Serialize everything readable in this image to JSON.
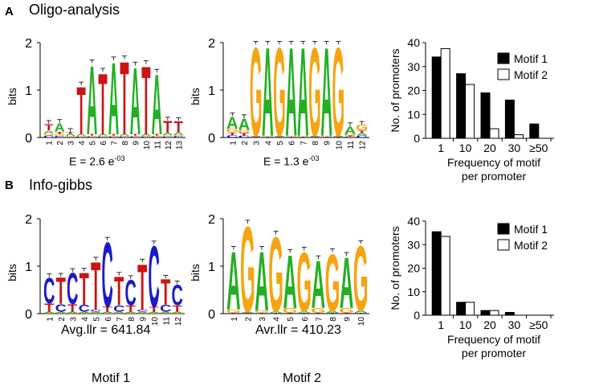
{
  "panels": {
    "A": {
      "letter": "A",
      "title": "Oligo-analysis"
    },
    "B": {
      "letter": "B",
      "title": "Info-gibbs"
    }
  },
  "logos": {
    "oligo_motif1": {
      "ylabel": "bits",
      "yticks": [
        "0",
        "1",
        "2"
      ],
      "ymax": 2,
      "stat_prefix": "E = 2.6 e",
      "stat_exp": "-03",
      "positions": [
        "1",
        "2",
        "3",
        "4",
        "5",
        "6",
        "7",
        "8",
        "9",
        "10",
        "11",
        "12",
        "13"
      ],
      "stacks": [
        [
          [
            "C",
            0.04
          ],
          [
            "G",
            0.05
          ],
          [
            "A",
            0.06
          ],
          [
            "T",
            0.14
          ]
        ],
        [
          [
            "C",
            0.03
          ],
          [
            "G",
            0.04
          ],
          [
            "T",
            0.06
          ],
          [
            "A",
            0.18
          ]
        ],
        [
          [
            "C",
            0.01
          ],
          [
            "G",
            0.02
          ],
          [
            "A",
            0.05
          ],
          [
            "T",
            0.04
          ]
        ],
        [
          [
            "C",
            0.02
          ],
          [
            "G",
            0.02
          ],
          [
            "A",
            0.03
          ],
          [
            "T",
            1.03
          ]
        ],
        [
          [
            "C",
            0.02
          ],
          [
            "G",
            0.02
          ],
          [
            "T",
            0.03
          ],
          [
            "A",
            1.5
          ]
        ],
        [
          [
            "C",
            0.02
          ],
          [
            "G",
            0.02
          ],
          [
            "A",
            0.03
          ],
          [
            "T",
            1.32
          ]
        ],
        [
          [
            "C",
            0.02
          ],
          [
            "G",
            0.02
          ],
          [
            "T",
            0.03
          ],
          [
            "A",
            1.56
          ]
        ],
        [
          [
            "C",
            0.02
          ],
          [
            "G",
            0.02
          ],
          [
            "A",
            0.03
          ],
          [
            "T",
            1.58
          ]
        ],
        [
          [
            "C",
            0.02
          ],
          [
            "G",
            0.02
          ],
          [
            "T",
            0.03
          ],
          [
            "A",
            1.45
          ]
        ],
        [
          [
            "C",
            0.02
          ],
          [
            "G",
            0.02
          ],
          [
            "A",
            0.03
          ],
          [
            "T",
            1.48
          ]
        ],
        [
          [
            "C",
            0.02
          ],
          [
            "G",
            0.02
          ],
          [
            "T",
            0.03
          ],
          [
            "A",
            1.3
          ]
        ],
        [
          [
            "C",
            0.02
          ],
          [
            "G",
            0.03
          ],
          [
            "A",
            0.05
          ],
          [
            "T",
            0.26
          ]
        ],
        [
          [
            "C",
            0.03
          ],
          [
            "G",
            0.03
          ],
          [
            "A",
            0.05
          ],
          [
            "T",
            0.24
          ]
        ]
      ]
    },
    "oligo_motif2": {
      "ylabel": "bits",
      "yticks": [
        "0",
        "1",
        "2"
      ],
      "ymax": 2,
      "stat_prefix": "E = 1.3 e",
      "stat_exp": "-03",
      "positions": [
        "1",
        "2",
        "3",
        "4",
        "5",
        "6",
        "7",
        "8",
        "9",
        "10",
        "11",
        "12"
      ],
      "stacks": [
        [
          [
            "C",
            0.05
          ],
          [
            "T",
            0.06
          ],
          [
            "G",
            0.08
          ],
          [
            "A",
            0.26
          ]
        ],
        [
          [
            "C",
            0.04
          ],
          [
            "T",
            0.05
          ],
          [
            "G",
            0.07
          ],
          [
            "A",
            0.25
          ]
        ],
        [
          [
            "C",
            0.01
          ],
          [
            "T",
            0.01
          ],
          [
            "A",
            0.02
          ],
          [
            "G",
            1.92
          ]
        ],
        [
          [
            "C",
            0.01
          ],
          [
            "T",
            0.01
          ],
          [
            "G",
            0.02
          ],
          [
            "A",
            1.92
          ]
        ],
        [
          [
            "C",
            0.01
          ],
          [
            "T",
            0.01
          ],
          [
            "A",
            0.02
          ],
          [
            "G",
            1.92
          ]
        ],
        [
          [
            "C",
            0.01
          ],
          [
            "T",
            0.01
          ],
          [
            "G",
            0.02
          ],
          [
            "A",
            1.92
          ]
        ],
        [
          [
            "C",
            0.01
          ],
          [
            "T",
            0.01
          ],
          [
            "G",
            0.02
          ],
          [
            "A",
            1.92
          ]
        ],
        [
          [
            "C",
            0.01
          ],
          [
            "T",
            0.01
          ],
          [
            "A",
            0.02
          ],
          [
            "G",
            1.92
          ]
        ],
        [
          [
            "C",
            0.01
          ],
          [
            "T",
            0.01
          ],
          [
            "G",
            0.02
          ],
          [
            "A",
            1.92
          ]
        ],
        [
          [
            "C",
            0.01
          ],
          [
            "T",
            0.01
          ],
          [
            "A",
            0.02
          ],
          [
            "G",
            1.92
          ]
        ],
        [
          [
            "C",
            0.02
          ],
          [
            "T",
            0.02
          ],
          [
            "G",
            0.04
          ],
          [
            "A",
            0.16
          ]
        ],
        [
          [
            "C",
            0.04
          ],
          [
            "A",
            0.05
          ],
          [
            "T",
            0.06
          ],
          [
            "G",
            0.12
          ]
        ]
      ]
    },
    "gibbs_motif1": {
      "ylabel": "bits",
      "yticks": [
        "0",
        "1",
        "2"
      ],
      "ymax": 2,
      "stat_text": "Avg.llr = 641.84",
      "positions": [
        "1",
        "2",
        "3",
        "4",
        "5",
        "6",
        "7",
        "8",
        "9",
        "10",
        "11",
        "12"
      ],
      "stacks": [
        [
          [
            "G",
            0.02
          ],
          [
            "A",
            0.02
          ],
          [
            "T",
            0.18
          ],
          [
            "C",
            0.55
          ]
        ],
        [
          [
            "G",
            0.02
          ],
          [
            "A",
            0.02
          ],
          [
            "C",
            0.16
          ],
          [
            "T",
            0.58
          ]
        ],
        [
          [
            "G",
            0.02
          ],
          [
            "A",
            0.02
          ],
          [
            "T",
            0.16
          ],
          [
            "C",
            0.68
          ]
        ],
        [
          [
            "G",
            0.02
          ],
          [
            "A",
            0.02
          ],
          [
            "C",
            0.15
          ],
          [
            "T",
            0.7
          ]
        ],
        [
          [
            "G",
            0.02
          ],
          [
            "A",
            0.02
          ],
          [
            "C",
            0.04
          ],
          [
            "T",
            1.04
          ]
        ],
        [
          [
            "G",
            0.02
          ],
          [
            "A",
            0.02
          ],
          [
            "T",
            0.1
          ],
          [
            "C",
            1.4
          ]
        ],
        [
          [
            "G",
            0.02
          ],
          [
            "A",
            0.02
          ],
          [
            "C",
            0.14
          ],
          [
            "T",
            0.62
          ]
        ],
        [
          [
            "G",
            0.02
          ],
          [
            "A",
            0.02
          ],
          [
            "T",
            0.14
          ],
          [
            "C",
            0.55
          ]
        ],
        [
          [
            "G",
            0.02
          ],
          [
            "A",
            0.02
          ],
          [
            "C",
            0.04
          ],
          [
            "T",
            1.0
          ]
        ],
        [
          [
            "G",
            0.02
          ],
          [
            "A",
            0.02
          ],
          [
            "T",
            0.1
          ],
          [
            "C",
            1.32
          ]
        ],
        [
          [
            "G",
            0.02
          ],
          [
            "A",
            0.02
          ],
          [
            "C",
            0.15
          ],
          [
            "T",
            0.55
          ]
        ],
        [
          [
            "G",
            0.02
          ],
          [
            "A",
            0.02
          ],
          [
            "T",
            0.14
          ],
          [
            "C",
            0.44
          ]
        ]
      ]
    },
    "gibbs_motif2": {
      "ylabel": "bits",
      "yticks": [
        "0",
        "1",
        "2"
      ],
      "ymax": 2,
      "stat_text": "Avr.llr = 410.23",
      "positions": [
        "1",
        "2",
        "3",
        "4",
        "5",
        "6",
        "7",
        "8",
        "9",
        "10"
      ],
      "stacks": [
        [
          [
            "C",
            0.01
          ],
          [
            "T",
            0.01
          ],
          [
            "G",
            0.07
          ],
          [
            "A",
            1.26
          ]
        ],
        [
          [
            "C",
            0.01
          ],
          [
            "T",
            0.01
          ],
          [
            "A",
            0.02
          ],
          [
            "G",
            1.86
          ]
        ],
        [
          [
            "C",
            0.01
          ],
          [
            "T",
            0.01
          ],
          [
            "G",
            0.05
          ],
          [
            "A",
            1.28
          ]
        ],
        [
          [
            "C",
            0.01
          ],
          [
            "T",
            0.01
          ],
          [
            "A",
            0.03
          ],
          [
            "G",
            1.62
          ]
        ],
        [
          [
            "C",
            0.01
          ],
          [
            "T",
            0.01
          ],
          [
            "G",
            0.1
          ],
          [
            "A",
            1.16
          ]
        ],
        [
          [
            "C",
            0.01
          ],
          [
            "T",
            0.01
          ],
          [
            "A",
            0.03
          ],
          [
            "G",
            1.28
          ]
        ],
        [
          [
            "C",
            0.01
          ],
          [
            "T",
            0.01
          ],
          [
            "G",
            0.1
          ],
          [
            "A",
            1.03
          ]
        ],
        [
          [
            "C",
            0.01
          ],
          [
            "T",
            0.01
          ],
          [
            "A",
            0.04
          ],
          [
            "G",
            1.24
          ]
        ],
        [
          [
            "C",
            0.01
          ],
          [
            "T",
            0.01
          ],
          [
            "G",
            0.1
          ],
          [
            "A",
            1.1
          ]
        ],
        [
          [
            "C",
            0.01
          ],
          [
            "T",
            0.01
          ],
          [
            "A",
            0.05
          ],
          [
            "G",
            1.4
          ]
        ]
      ]
    }
  },
  "chart_data": [
    {
      "type": "bar",
      "title": "Oligo-analysis",
      "categories": [
        "1",
        "10",
        "20",
        "30",
        "≥50"
      ],
      "series": [
        {
          "name": "Motif 1",
          "values": [
            34,
            27,
            19,
            16,
            6
          ],
          "color": "#000000"
        },
        {
          "name": "Motif 2",
          "values": [
            37.5,
            22.5,
            4,
            1.5,
            0
          ],
          "color": "#ffffff"
        }
      ],
      "xlabel": "Frequency of motif\nper promoter",
      "xlabel_lines": [
        "Frequency of motif",
        "per promoter"
      ],
      "ylabel": "No. of promoters",
      "yticks": [
        "0",
        "10",
        "20",
        "30",
        "40"
      ],
      "ylim": [
        0,
        40
      ],
      "legend_position": "top-right"
    },
    {
      "type": "bar",
      "title": "Info-gibbs",
      "categories": [
        "1",
        "10",
        "20",
        "30",
        "≥50"
      ],
      "series": [
        {
          "name": "Motif 1",
          "values": [
            35.5,
            5.5,
            2,
            1.2,
            0
          ],
          "color": "#000000"
        },
        {
          "name": "Motif 2",
          "values": [
            33.5,
            5.5,
            2,
            0,
            0
          ],
          "color": "#ffffff"
        }
      ],
      "xlabel": "Frequency of motif\nper promoter",
      "xlabel_lines": [
        "Frequency of motif",
        "per promoter"
      ],
      "ylabel": "No. of promoters",
      "yticks": [
        "0",
        "10",
        "20",
        "30",
        "40"
      ],
      "ylim": [
        0,
        40
      ],
      "legend_position": "top-right"
    }
  ],
  "footer": {
    "motif1": "Motif 1",
    "motif2": "Motif 2"
  },
  "base_colors": {
    "A": "#22b022",
    "C": "#1a1acc",
    "G": "#f5a511",
    "T": "#cc1414"
  }
}
